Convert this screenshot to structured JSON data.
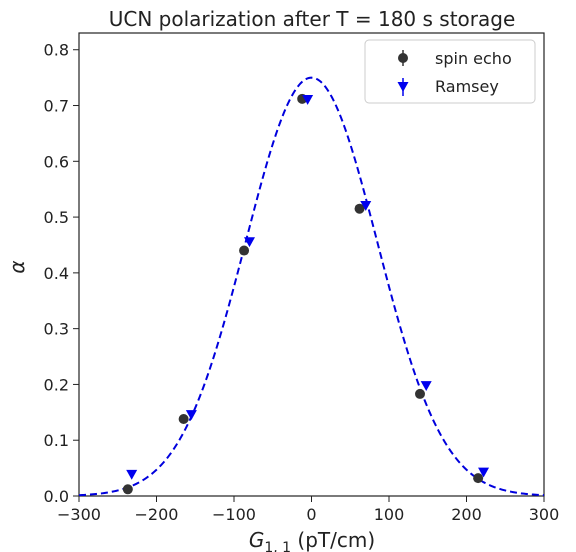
{
  "chart_data": {
    "type": "scatter",
    "title": "UCN polarization after T = 180 s storage",
    "xlabel": "G",
    "xlabel_sub": "1, 1",
    "xlabel_unit": " (pT/cm)",
    "ylabel": "α",
    "xlim": [
      -300,
      300
    ],
    "ylim": [
      0,
      0.83
    ],
    "x_ticks": [
      -300,
      -200,
      -100,
      0,
      100,
      200,
      300
    ],
    "x_tick_labels": [
      "−300",
      "−200",
      "−100",
      "0",
      "100",
      "200",
      "300"
    ],
    "y_ticks": [
      0.0,
      0.1,
      0.2,
      0.3,
      0.4,
      0.5,
      0.6,
      0.7,
      0.8
    ],
    "y_tick_labels": [
      "0.0",
      "0.1",
      "0.2",
      "0.3",
      "0.4",
      "0.5",
      "0.6",
      "0.7",
      "0.8"
    ],
    "grid": false,
    "legend_position": "top-right",
    "series": [
      {
        "name": "spin echo",
        "marker": "circle",
        "color": "#333333",
        "x": [
          -237,
          -165,
          -87,
          -12,
          62,
          140,
          215
        ],
        "y": [
          0.012,
          0.138,
          0.44,
          0.712,
          0.515,
          0.183,
          0.032
        ]
      },
      {
        "name": "Ramsey",
        "marker": "triangle-down",
        "color": "#0000ee",
        "x": [
          -232,
          -155,
          -80,
          -5,
          70,
          148,
          222
        ],
        "y": [
          0.038,
          0.145,
          0.455,
          0.71,
          0.52,
          0.197,
          0.042
        ]
      }
    ],
    "fit": {
      "style": "dashed",
      "color": "#0000dd",
      "model": "gaussian",
      "amplitude": 0.75,
      "center": 0,
      "sigma": 85
    }
  }
}
